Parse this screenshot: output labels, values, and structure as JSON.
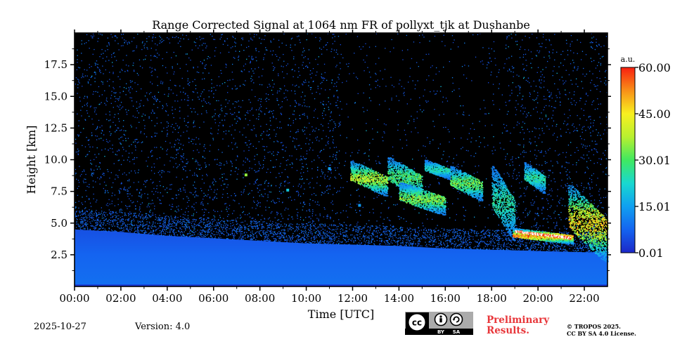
{
  "title": "Range Corrected Signal at 1064 nm FR of pollyxt_tjk at Dushanbe",
  "footer": {
    "date": "2025-10-27",
    "version": "Version: 4.0",
    "preliminary_line1": "Preliminary",
    "preliminary_line2": "Results.",
    "copyright_line1": "© TROPOS 2025.",
    "copyright_line2": "CC BY SA 4.0 License.",
    "license_badge": {
      "by": "BY",
      "sa": "SA"
    }
  },
  "chart_data": {
    "type": "heatmap",
    "title": "Range Corrected Signal at 1064 nm FR of pollyxt_tjk at Dushanbe",
    "xlabel": "Time [UTC]",
    "ylabel": "Height [km]",
    "xlim_hours": [
      0,
      23
    ],
    "ylim_km": [
      0,
      20
    ],
    "x_ticks": [
      {
        "h": 0,
        "label": "00:00"
      },
      {
        "h": 2,
        "label": "02:00"
      },
      {
        "h": 4,
        "label": "04:00"
      },
      {
        "h": 6,
        "label": "06:00"
      },
      {
        "h": 8,
        "label": "08:00"
      },
      {
        "h": 10,
        "label": "10:00"
      },
      {
        "h": 12,
        "label": "12:00"
      },
      {
        "h": 14,
        "label": "14:00"
      },
      {
        "h": 16,
        "label": "16:00"
      },
      {
        "h": 18,
        "label": "18:00"
      },
      {
        "h": 20,
        "label": "20:00"
      },
      {
        "h": 22,
        "label": "22:00"
      }
    ],
    "y_ticks": [
      {
        "km": 2.5,
        "label": "2.5"
      },
      {
        "km": 5.0,
        "label": "5.0"
      },
      {
        "km": 7.5,
        "label": "7.5"
      },
      {
        "km": 10.0,
        "label": "10.0"
      },
      {
        "km": 12.5,
        "label": "12.5"
      },
      {
        "km": 15.0,
        "label": "15.0"
      },
      {
        "km": 17.5,
        "label": "17.5"
      }
    ],
    "colorbar": {
      "unit": "a.u.",
      "range": [
        0.01,
        60.0
      ],
      "ticks": [
        {
          "value": 0.01,
          "label": "0.01"
        },
        {
          "value": 15.01,
          "label": "15.01"
        },
        {
          "value": 30.01,
          "label": "30.01"
        },
        {
          "value": 45.0,
          "label": "45.00"
        },
        {
          "value": 60.0,
          "label": "60.00"
        }
      ],
      "colors": [
        "#1c28c8",
        "#1464f0",
        "#10a0f0",
        "#18d8d0",
        "#40e860",
        "#b8f030",
        "#f8f020",
        "#f89018",
        "#f82010"
      ]
    },
    "boundary_layer_top_km": [
      [
        0,
        4.5
      ],
      [
        2,
        4.3
      ],
      [
        4,
        4.0
      ],
      [
        6,
        3.8
      ],
      [
        8,
        3.6
      ],
      [
        10,
        3.4
      ],
      [
        12,
        3.3
      ],
      [
        14,
        3.2
      ],
      [
        16,
        3.0
      ],
      [
        18,
        2.9
      ],
      [
        20,
        2.8
      ],
      [
        22,
        2.7
      ],
      [
        23,
        2.7
      ]
    ],
    "features": [
      {
        "desc": "aerosol layer",
        "start_h": 11.9,
        "end_h": 13.5,
        "top_km": 9.9,
        "bottom_km": 7.2,
        "peak": 45
      },
      {
        "desc": "aerosol layer",
        "start_h": 13.5,
        "end_h": 15.0,
        "top_km": 10.2,
        "bottom_km": 7.0,
        "peak": 35
      },
      {
        "desc": "aerosol layer",
        "start_h": 14.0,
        "end_h": 16.0,
        "top_km": 8.2,
        "bottom_km": 5.7,
        "peak": 40
      },
      {
        "desc": "aerosol layer",
        "start_h": 15.1,
        "end_h": 16.2,
        "top_km": 10.0,
        "bottom_km": 8.5,
        "peak": 28
      },
      {
        "desc": "aerosol layer",
        "start_h": 16.2,
        "end_h": 17.6,
        "top_km": 9.5,
        "bottom_km": 6.8,
        "peak": 38
      },
      {
        "desc": "descending layer",
        "start_h": 18.0,
        "end_h": 19.0,
        "top_km": 9.5,
        "bottom_km": 3.7,
        "peak": 30
      },
      {
        "desc": "cloud layer",
        "start_h": 18.9,
        "end_h": 21.5,
        "top_km": 4.6,
        "bottom_km": 3.4,
        "peak": 60
      },
      {
        "desc": "elevated column",
        "start_h": 19.4,
        "end_h": 20.3,
        "top_km": 9.8,
        "bottom_km": 7.4,
        "peak": 30
      },
      {
        "desc": "cloud layer",
        "start_h": 21.3,
        "end_h": 23.0,
        "top_km": 8.0,
        "bottom_km": 2.0,
        "peak": 55
      }
    ]
  }
}
